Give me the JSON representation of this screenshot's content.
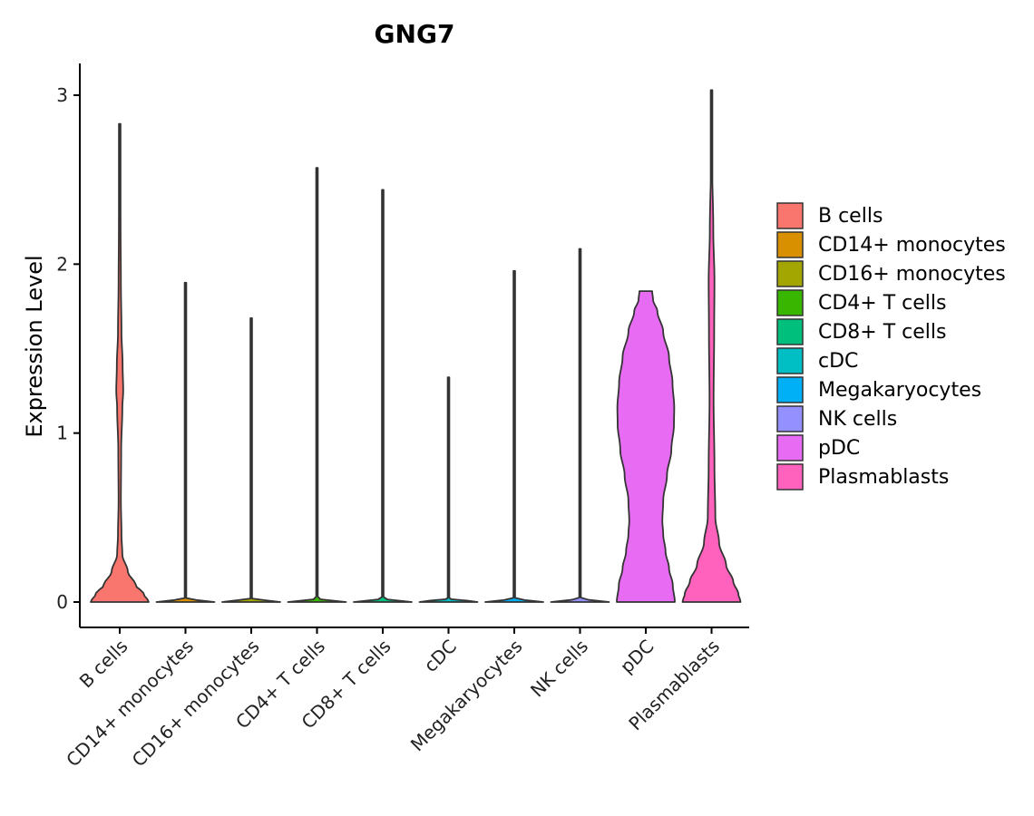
{
  "chart_data": {
    "type": "violin",
    "title": "GNG7",
    "xlabel": "",
    "ylabel": "Expression Level",
    "ylim": [
      -0.15,
      3.18
    ],
    "yticks": [
      0,
      1,
      2,
      3
    ],
    "grid": false,
    "legend_position": "right",
    "categories": [
      "B cells",
      "CD14+ monocytes",
      "CD16+ monocytes",
      "CD4+ T cells",
      "CD8+ T cells",
      "cDC",
      "Megakaryocytes",
      "NK cells",
      "pDC",
      "Plasmablasts"
    ],
    "colors": [
      "#F8766D",
      "#D89000",
      "#A3A500",
      "#39B600",
      "#00BF7D",
      "#00BFC4",
      "#00B0F6",
      "#9590FF",
      "#E76BF3",
      "#FF62BC"
    ],
    "max_values": [
      2.83,
      1.89,
      1.68,
      2.57,
      2.44,
      1.33,
      1.96,
      2.09,
      1.84,
      3.03
    ],
    "density_profiles": [
      [
        [
          0,
          1.0
        ],
        [
          0.05,
          0.82
        ],
        [
          0.1,
          0.55
        ],
        [
          0.18,
          0.28
        ],
        [
          0.28,
          0.09
        ],
        [
          0.4,
          0.06
        ],
        [
          0.6,
          0.04
        ],
        [
          0.9,
          0.05
        ],
        [
          1.15,
          0.09
        ],
        [
          1.25,
          0.12
        ],
        [
          1.4,
          0.1
        ],
        [
          1.6,
          0.06
        ],
        [
          1.9,
          0.04
        ],
        [
          2.2,
          0.03
        ],
        [
          2.83,
          0.0
        ]
      ],
      [
        [
          0,
          1.0
        ],
        [
          0.02,
          0.02
        ],
        [
          1.89,
          0.01
        ]
      ],
      [
        [
          0,
          1.0
        ],
        [
          0.02,
          0.02
        ],
        [
          1.68,
          0.01
        ]
      ],
      [
        [
          0,
          1.0
        ],
        [
          0.02,
          0.02
        ],
        [
          2.57,
          0.01
        ]
      ],
      [
        [
          0,
          1.0
        ],
        [
          0.02,
          0.02
        ],
        [
          2.44,
          0.01
        ]
      ],
      [
        [
          0,
          1.0
        ],
        [
          0.02,
          0.02
        ],
        [
          1.33,
          0.01
        ]
      ],
      [
        [
          0,
          1.0
        ],
        [
          0.02,
          0.02
        ],
        [
          1.96,
          0.01
        ]
      ],
      [
        [
          0,
          1.0
        ],
        [
          0.02,
          0.02
        ],
        [
          2.09,
          0.01
        ]
      ],
      [
        [
          0,
          1.0
        ],
        [
          0.1,
          0.93
        ],
        [
          0.2,
          0.8
        ],
        [
          0.3,
          0.68
        ],
        [
          0.4,
          0.6
        ],
        [
          0.48,
          0.57
        ],
        [
          0.6,
          0.6
        ],
        [
          0.75,
          0.73
        ],
        [
          0.9,
          0.88
        ],
        [
          1.05,
          0.97
        ],
        [
          1.15,
          0.98
        ],
        [
          1.3,
          0.92
        ],
        [
          1.45,
          0.8
        ],
        [
          1.6,
          0.6
        ],
        [
          1.72,
          0.4
        ],
        [
          1.79,
          0.25
        ],
        [
          1.84,
          0.22
        ]
      ],
      [
        [
          0,
          1.0
        ],
        [
          0.05,
          0.92
        ],
        [
          0.12,
          0.75
        ],
        [
          0.22,
          0.5
        ],
        [
          0.35,
          0.26
        ],
        [
          0.5,
          0.13
        ],
        [
          0.8,
          0.1
        ],
        [
          1.2,
          0.07
        ],
        [
          1.6,
          0.09
        ],
        [
          1.9,
          0.1
        ],
        [
          2.2,
          0.06
        ],
        [
          2.6,
          0.02
        ],
        [
          3.03,
          0.0
        ]
      ]
    ]
  }
}
